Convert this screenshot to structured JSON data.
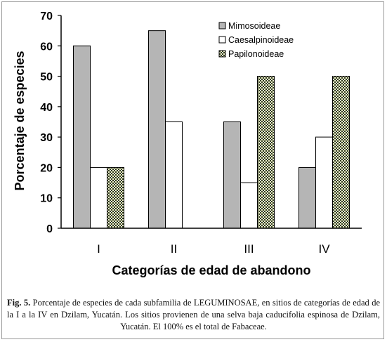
{
  "chart_data": {
    "type": "bar",
    "categories": [
      "I",
      "II",
      "III",
      "IV"
    ],
    "series": [
      {
        "name": "Mimosoideae",
        "values": [
          60,
          65,
          35,
          20
        ],
        "fill": "#b5b5b5",
        "pattern": "solid-gray"
      },
      {
        "name": "Caesalpinoideae",
        "values": [
          20,
          35,
          15,
          30
        ],
        "fill": "#ffffff",
        "pattern": "solid-white"
      },
      {
        "name": "Papilonoideae",
        "values": [
          20,
          null,
          50,
          50
        ],
        "fill": "#d8d89a",
        "pattern": "checkered"
      }
    ],
    "xlabel": "Categorías de edad de abandono",
    "ylabel": "Porcentaje de especies",
    "ylim": [
      0,
      70
    ],
    "yticks": [
      0,
      10,
      20,
      30,
      40,
      50,
      60,
      70
    ],
    "grid": false,
    "legend": "top-right"
  },
  "caption": {
    "label": "Fig. 5.",
    "text": " Porcentaje de especies de cada subfamilia de LEGUMINOSAE, en sitios de categorías de edad de la I a la IV en Dzilam, Yucatán. Los sitios provienen de una selva baja caducifolia espinosa de Dzilam, Yucatán. El 100% es el total de Fabaceae."
  }
}
